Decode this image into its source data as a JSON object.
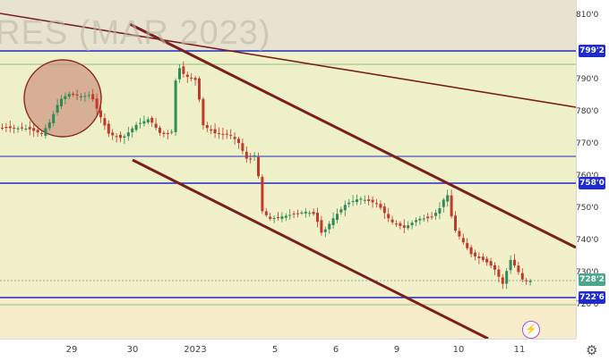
{
  "watermark": "RES (MAR 2023)",
  "price_axis": {
    "ticks": [
      "810'0",
      "790'0",
      "780'0",
      "770'0",
      "760'0",
      "750'0",
      "740'0",
      "730'0",
      "720'0"
    ],
    "badges": [
      {
        "label": "799'2",
        "color": "#1f2bcc"
      },
      {
        "label": "758'0",
        "color": "#1f2bcc"
      },
      {
        "label": "728'2",
        "color": "#4aa88a"
      },
      {
        "label": "722'6",
        "color": "#1f2bcc"
      }
    ]
  },
  "time_axis": {
    "ticks": [
      "29",
      "30",
      "2023",
      "5",
      "6",
      "9",
      "10",
      "11"
    ]
  },
  "icons": {
    "settings": "gear-icon",
    "flash": "lightning-icon"
  },
  "colors": {
    "bull": "#2e8b57",
    "bear": "#c0392b",
    "level_line": "#1f2bcc",
    "trend_line": "#7a1f1f",
    "band_top": "#e8e3cf",
    "band_mid": "#eef0c8",
    "band_low": "#f5ecc8"
  },
  "chart_data": {
    "type": "candlestick",
    "horizontal_levels": [
      799.2,
      795.2,
      767.0,
      758.0,
      722.6,
      721.8
    ],
    "last_price": 728.2
  }
}
